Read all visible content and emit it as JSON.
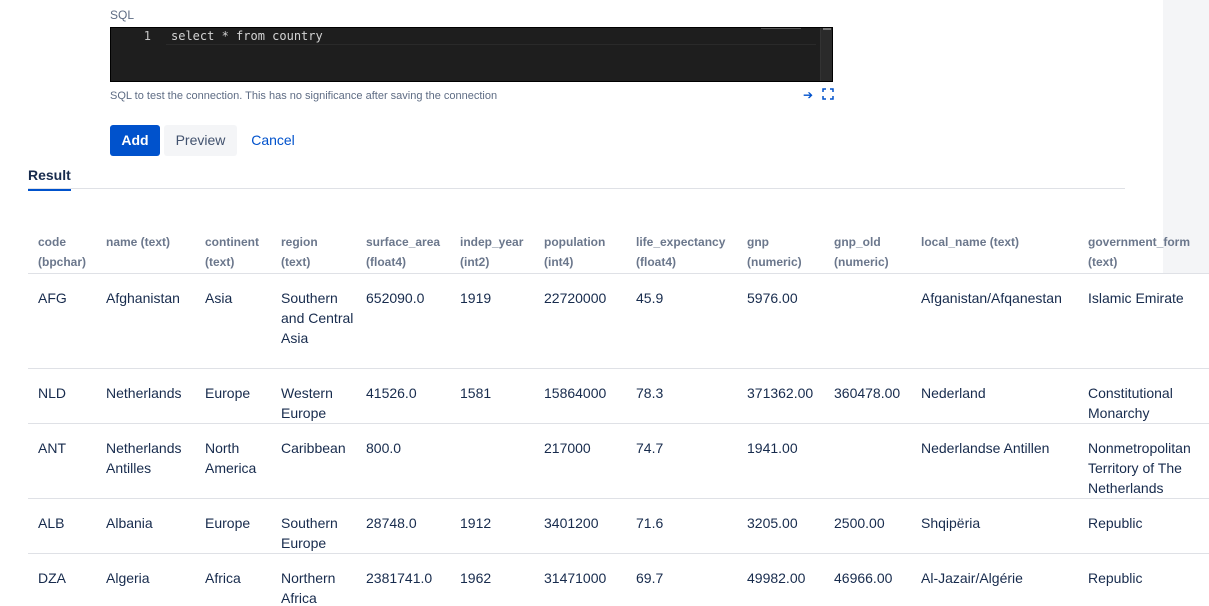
{
  "editor": {
    "label": "SQL",
    "line_number": "1",
    "query": "select * from country",
    "hint": "SQL to test the connection. This has no significance after saving the connection",
    "icons": [
      "arrow-right-icon",
      "expand-icon"
    ]
  },
  "actions": {
    "add": "Add",
    "preview": "Preview",
    "cancel": "Cancel"
  },
  "tabs": {
    "result": "Result"
  },
  "table": {
    "columns": [
      {
        "name": "code",
        "type": "(bpchar)"
      },
      {
        "name": "name (text)",
        "type": ""
      },
      {
        "name": "continent",
        "type": "(text)"
      },
      {
        "name": "region",
        "type": "(text)"
      },
      {
        "name": "surface_area",
        "type": "(float4)"
      },
      {
        "name": "indep_year",
        "type": "(int2)"
      },
      {
        "name": "population",
        "type": "(int4)"
      },
      {
        "name": "life_expectancy",
        "type": "(float4)"
      },
      {
        "name": "gnp",
        "type": "(numeric)"
      },
      {
        "name": "gnp_old",
        "type": "(numeric)"
      },
      {
        "name": "local_name (text)",
        "type": ""
      },
      {
        "name": "government_form",
        "type": "(text)"
      }
    ],
    "rows": [
      [
        "AFG",
        "Afghanistan",
        "Asia",
        "Southern and Central Asia",
        "652090.0",
        "1919",
        "22720000",
        "45.9",
        "5976.00",
        "",
        "Afganistan/Afqanestan",
        "Islamic Emirate"
      ],
      [
        "NLD",
        "Netherlands",
        "Europe",
        "Western Europe",
        "41526.0",
        "1581",
        "15864000",
        "78.3",
        "371362.00",
        "360478.00",
        "Nederland",
        "Constitutional Monarchy"
      ],
      [
        "ANT",
        "Netherlands Antilles",
        "North America",
        "Caribbean",
        "800.0",
        "",
        "217000",
        "74.7",
        "1941.00",
        "",
        "Nederlandse Antillen",
        "Nonmetropolitan Territory of The Netherlands"
      ],
      [
        "ALB",
        "Albania",
        "Europe",
        "Southern Europe",
        "28748.0",
        "1912",
        "3401200",
        "71.6",
        "3205.00",
        "2500.00",
        "Shqipëria",
        "Republic"
      ],
      [
        "DZA",
        "Algeria",
        "Africa",
        "Northern Africa",
        "2381741.0",
        "1962",
        "31471000",
        "69.7",
        "49982.00",
        "46966.00",
        "Al-Jazair/Algérie",
        "Republic"
      ]
    ]
  }
}
